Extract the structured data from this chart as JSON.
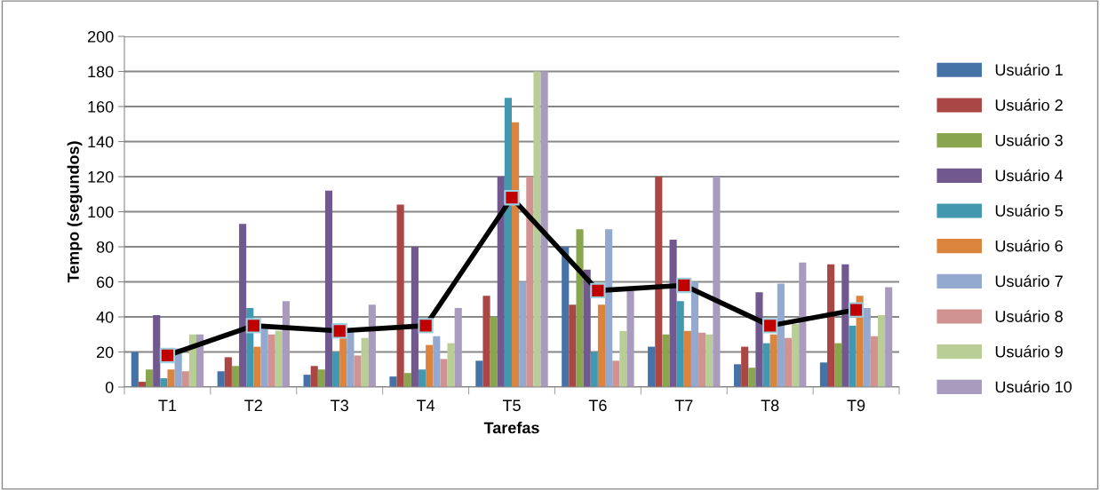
{
  "chart_data": {
    "type": "bar",
    "xlabel": "Tarefas",
    "ylabel": "Tempo (segundos)",
    "categories": [
      "T1",
      "T2",
      "T3",
      "T4",
      "T5",
      "T6",
      "T7",
      "T8",
      "T9"
    ],
    "ylim": [
      0,
      200
    ],
    "yticks": [
      0,
      20,
      40,
      60,
      80,
      100,
      120,
      140,
      160,
      180,
      200
    ],
    "grid": "y",
    "legend": "right",
    "series": [
      {
        "name": "Usuário 1",
        "color": "#4572a7",
        "values": [
          20,
          9,
          7,
          6,
          15,
          80,
          23,
          13,
          14
        ]
      },
      {
        "name": "Usuário 2",
        "color": "#aa4643",
        "values": [
          3,
          17,
          12,
          104,
          52,
          47,
          120,
          23,
          70
        ]
      },
      {
        "name": "Usuário 3",
        "color": "#89a54e",
        "values": [
          10,
          12,
          10,
          8,
          40,
          90,
          30,
          11,
          25
        ]
      },
      {
        "name": "Usuário 4",
        "color": "#71588f",
        "values": [
          41,
          93,
          112,
          80,
          120,
          67,
          84,
          54,
          70
        ]
      },
      {
        "name": "Usuário 5",
        "color": "#4198af",
        "values": [
          5,
          45,
          20,
          10,
          165,
          20,
          49,
          25,
          35
        ]
      },
      {
        "name": "Usuário 6",
        "color": "#db843d",
        "values": [
          10,
          23,
          28,
          24,
          151,
          47,
          32,
          30,
          52
        ]
      },
      {
        "name": "Usuário 7",
        "color": "#93a9cf",
        "values": [
          22,
          35,
          32,
          29,
          60,
          90,
          60,
          59,
          45
        ]
      },
      {
        "name": "Usuário 8",
        "color": "#d19392",
        "values": [
          9,
          30,
          18,
          16,
          120,
          15,
          31,
          28,
          29
        ]
      },
      {
        "name": "Usuário 9",
        "color": "#b9cd96",
        "values": [
          30,
          32,
          28,
          25,
          180,
          32,
          30,
          36,
          41
        ]
      },
      {
        "name": "Usuário 10",
        "color": "#a99bbd",
        "values": [
          30,
          49,
          47,
          45,
          180,
          55,
          120,
          71,
          57
        ]
      },
      {
        "type": "line",
        "color": "#000000",
        "marker": "square",
        "values": [
          18,
          35,
          32,
          35,
          108,
          55,
          58,
          35,
          44
        ]
      }
    ]
  }
}
